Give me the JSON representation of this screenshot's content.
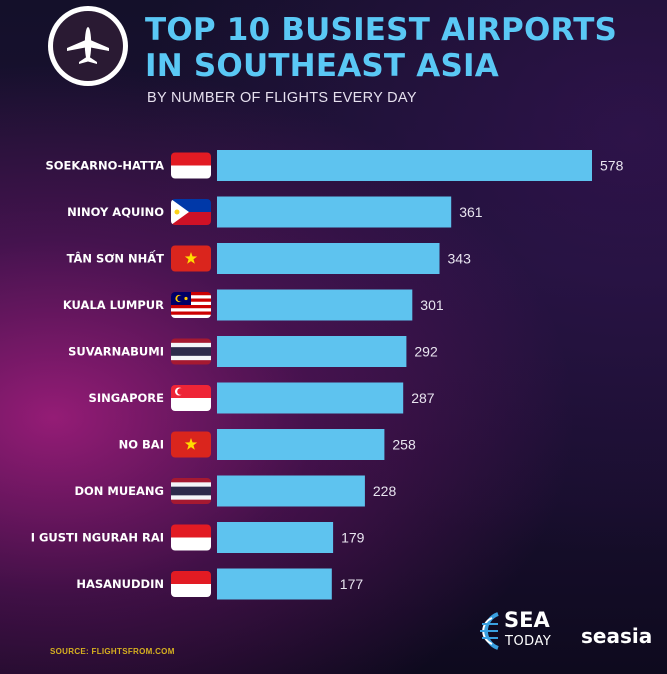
{
  "header": {
    "title_line1": "TOP 10 BUSIEST AIRPORTS",
    "title_line2": "IN SOUTHEAST ASIA",
    "subtitle": "BY NUMBER OF FLIGHTS EVERY DAY",
    "icon": "airplane-icon"
  },
  "chart_data": {
    "type": "bar",
    "orientation": "horizontal",
    "categories": [
      "SOEKARNO-HATTA",
      "NINOY AQUINO",
      "TÂN SƠN NHẤT",
      "KUALA LUMPUR",
      "SUVARNABUMI",
      "SINGAPORE",
      "NO BAI",
      "DON MUEANG",
      "I GUSTI NGURAH RAI",
      "HASANUDDIN"
    ],
    "values": [
      578,
      361,
      343,
      301,
      292,
      287,
      258,
      228,
      179,
      177
    ],
    "flags": [
      "indonesia",
      "philippines",
      "vietnam",
      "malaysia",
      "thailand",
      "singapore",
      "vietnam",
      "thailand",
      "indonesia",
      "indonesia"
    ],
    "title": "TOP 10 BUSIEST AIRPORTS IN SOUTHEAST ASIA",
    "subtitle": "BY NUMBER OF FLIGHTS EVERY DAY",
    "grid": false,
    "legend": "none",
    "colors": {
      "bar": "#5ec3ef",
      "value_text": "#e8e4ef",
      "label_text": "#ffffff"
    }
  },
  "footer": {
    "source": "SOURCE: FLIGHTSFROM.COM",
    "brand_sea": "SEA",
    "brand_today": "TODAY",
    "brand_seasia": "seasia"
  }
}
